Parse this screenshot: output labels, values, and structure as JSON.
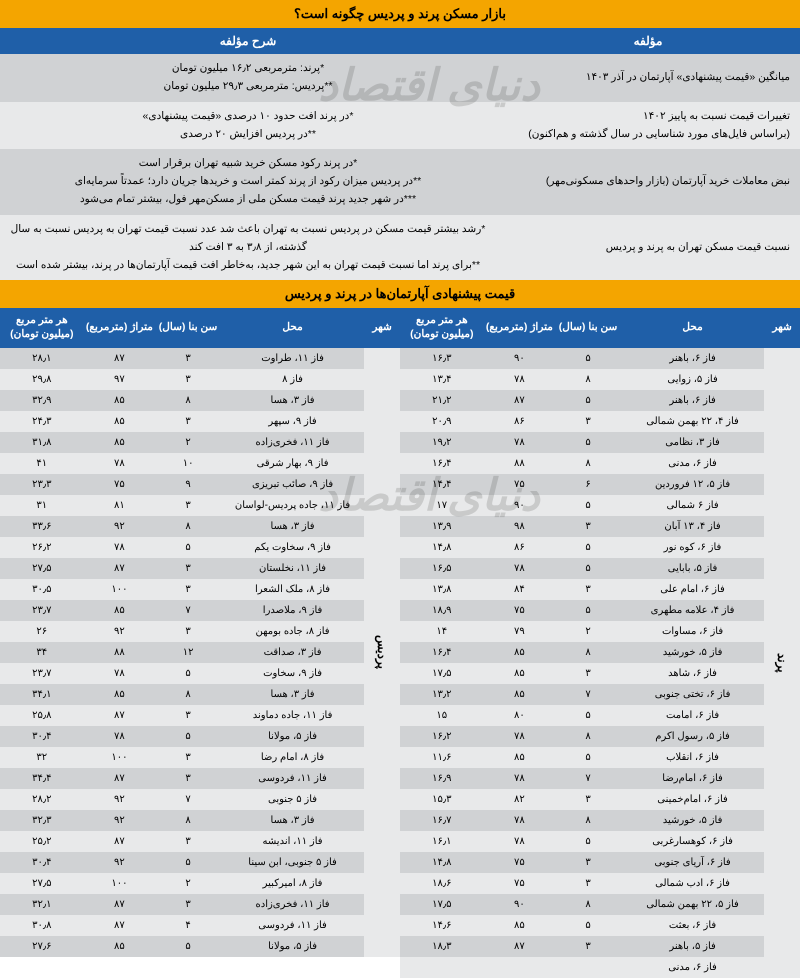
{
  "title": "بازار مسکن پرند و پردیس چگونه است؟",
  "subTitle": "قیمت پیشنهادی آپارتمان‌ها در پرند و پردیس",
  "watermark": "دنیای اقتصاد",
  "summaryHeaders": {
    "right": "مؤلفه",
    "left": "شرح مؤلفه"
  },
  "summaryRows": [
    {
      "r": "میانگین «قیمت پیشنهادی» آپارتمان در آذر ۱۴۰۳",
      "l": "*پرند: مترمربعی ۱۶٫۲ میلیون تومان<br>**پردیس: مترمربعی ۲۹٫۳ میلیون تومان"
    },
    {
      "r": "تغییرات قیمت نسبت به پاییز ۱۴۰۲<br>(براساس فایل‌های مورد شناسایی در سال گذشته و هم‌اکنون)",
      "l": "*در پرند افت حدود ۱۰ درصدی «قیمت پیشنهادی»<br>**در پردیس افزایش ۲۰ درصدی"
    },
    {
      "r": "نبض معاملات خرید آپارتمان (بازار واحدهای مسکونی‌مهر)",
      "l": "*در پرند رکود مسکن خرید شبیه تهران برقرار است<br>**در پردیس میزان رکود از پرند کمتر است و خریدها جریان دارد؛ عمدتاً سرمایه‌ای<br>***در شهر جدید پرند قیمت مسکن ملی از مسکن‌مهر فول، بیشتر تمام می‌شود"
    },
    {
      "r": "نسبت قیمت مسکن تهران به پرند و پردیس",
      "l": "*رشد بیشتر قیمت مسکن در پردیس نسبت به تهران باعث شد عدد نسبت قیمت تهران به پردیس نسبت به سال گذشته، از ۳٫۸ به ۳ افت کند<br>**برای پرند اما نسبت قیمت تهران به این شهر جدید، به‌خاطر افت قیمت آپارتمان‌ها در پرند، بیشتر شده است"
    }
  ],
  "priceHeaders": {
    "city": "شهر",
    "loc": "محل",
    "age": "سن بنا (سال)",
    "area": "متراژ (مترمربع)",
    "price": "هر متر مربع<br>(میلیون تومان)"
  },
  "cityRight": "پرند",
  "cityLeft": "پردیس",
  "rowsRight": [
    {
      "loc": "فاز ۶، باهنر",
      "age": "۵",
      "area": "۹۰",
      "price": "۱۶٫۳"
    },
    {
      "loc": "فاز ۵، زوایی",
      "age": "۸",
      "area": "۷۸",
      "price": "۱۳٫۴"
    },
    {
      "loc": "فاز ۶، باهنر",
      "age": "۵",
      "area": "۸۷",
      "price": "۲۱٫۲"
    },
    {
      "loc": "فاز ۴، ۲۲ بهمن شمالی",
      "age": "۳",
      "area": "۸۶",
      "price": "۲۰٫۹"
    },
    {
      "loc": "فاز ۳، نظامی",
      "age": "۵",
      "area": "۷۸",
      "price": "۱۹٫۲"
    },
    {
      "loc": "فاز ۶، مدنی",
      "age": "۸",
      "area": "۸۸",
      "price": "۱۶٫۴"
    },
    {
      "loc": "فاز ۵، ۱۲ فروردین",
      "age": "۶",
      "area": "۷۵",
      "price": "۱۴٫۴"
    },
    {
      "loc": "فاز ۶ شمالی",
      "age": "۵",
      "area": "۹۰",
      "price": "۱۷"
    },
    {
      "loc": "فاز ۴، ۱۳ آبان",
      "age": "۳",
      "area": "۹۸",
      "price": "۱۳٫۹"
    },
    {
      "loc": "فاز ۶، کوه نور",
      "age": "۵",
      "area": "۸۶",
      "price": "۱۴٫۸"
    },
    {
      "loc": "فاز ۵، بابایی",
      "age": "۵",
      "area": "۷۸",
      "price": "۱۶٫۵"
    },
    {
      "loc": "فاز ۶، امام علی",
      "age": "۳",
      "area": "۸۴",
      "price": "۱۳٫۸"
    },
    {
      "loc": "فاز ۴، علامه مطهری",
      "age": "۵",
      "area": "۷۵",
      "price": "۱۸٫۹"
    },
    {
      "loc": "فاز ۶، مساوات",
      "age": "۲",
      "area": "۷۹",
      "price": "۱۴"
    },
    {
      "loc": "فاز ۵، خورشید",
      "age": "۸",
      "area": "۸۵",
      "price": "۱۶٫۴"
    },
    {
      "loc": "فاز ۶، شاهد",
      "age": "۳",
      "area": "۸۵",
      "price": "۱۷٫۵"
    },
    {
      "loc": "فاز ۶، تختی جنوبی",
      "age": "۷",
      "area": "۸۵",
      "price": "۱۳٫۲"
    },
    {
      "loc": "فاز ۶، امامت",
      "age": "۵",
      "area": "۸۰",
      "price": "۱۵"
    },
    {
      "loc": "فاز ۵، رسول اکرم",
      "age": "۸",
      "area": "۷۸",
      "price": "۱۶٫۲"
    },
    {
      "loc": "فاز ۶، انقلاب",
      "age": "۵",
      "area": "۸۵",
      "price": "۱۱٫۶"
    },
    {
      "loc": "فاز ۶، امام‌رضا",
      "age": "۷",
      "area": "۷۸",
      "price": "۱۶٫۹"
    },
    {
      "loc": "فاز ۶، امام‌خمینی",
      "age": "۳",
      "area": "۸۲",
      "price": "۱۵٫۳"
    },
    {
      "loc": "فاز ۵، خورشید",
      "age": "۸",
      "area": "۷۸",
      "price": "۱۶٫۷"
    },
    {
      "loc": "فاز ۶، کوهسارغربی",
      "age": "۵",
      "area": "۷۸",
      "price": "۱۶٫۱"
    },
    {
      "loc": "فاز ۶، آریای جنوبی",
      "age": "۳",
      "area": "۷۵",
      "price": "۱۴٫۸"
    },
    {
      "loc": "فاز ۶، ادب شمالی",
      "age": "۳",
      "area": "۷۵",
      "price": "۱۸٫۶"
    },
    {
      "loc": "فاز ۵، ۲۲ بهمن شمالی",
      "age": "۸",
      "area": "۹۰",
      "price": "۱۷٫۵"
    },
    {
      "loc": "فاز ۶، بعثت",
      "age": "۵",
      "area": "۸۵",
      "price": "۱۴٫۶"
    },
    {
      "loc": "فاز ۵، باهنر",
      "age": "۳",
      "area": "۸۷",
      "price": "۱۸٫۳"
    },
    {
      "loc": "فاز ۶، مدنی",
      "age": "",
      "area": "",
      "price": ""
    }
  ],
  "rowsLeft": [
    {
      "loc": "فاز ۱۱، طراوت",
      "age": "۳",
      "area": "۸۷",
      "price": "۲۸٫۱"
    },
    {
      "loc": "فاز ۸",
      "age": "۳",
      "area": "۹۷",
      "price": "۲۹٫۸"
    },
    {
      "loc": "فاز ۳، هسا",
      "age": "۸",
      "area": "۸۵",
      "price": "۳۲٫۹"
    },
    {
      "loc": "فاز ۹، سپهر",
      "age": "۳",
      "area": "۸۵",
      "price": "۲۴٫۳"
    },
    {
      "loc": "فاز ۱۱، فخری‌زاده",
      "age": "۲",
      "area": "۸۵",
      "price": "۳۱٫۸"
    },
    {
      "loc": "فاز ۹، بهار شرقی",
      "age": "۱۰",
      "area": "۷۸",
      "price": "۴۱"
    },
    {
      "loc": "فاز ۹، صائب تبریزی",
      "age": "۹",
      "area": "۷۵",
      "price": "۲۳٫۳"
    },
    {
      "loc": "فاز ۱۱، جاده پردیس-لواسان",
      "age": "۳",
      "area": "۸۱",
      "price": "۳۱"
    },
    {
      "loc": "فاز ۳، هسا",
      "age": "۸",
      "area": "۹۲",
      "price": "۳۳٫۶"
    },
    {
      "loc": "فاز ۹، سخاوت یکم",
      "age": "۵",
      "area": "۷۸",
      "price": "۲۶٫۲"
    },
    {
      "loc": "فاز ۱۱، نخلستان",
      "age": "۳",
      "area": "۸۷",
      "price": "۲۷٫۵"
    },
    {
      "loc": "فاز ۸، ملک الشعرا",
      "age": "۳",
      "area": "۱۰۰",
      "price": "۳۰٫۵"
    },
    {
      "loc": "فاز ۹، ملاصدرا",
      "age": "۷",
      "area": "۸۵",
      "price": "۲۳٫۷"
    },
    {
      "loc": "فاز ۸، جاده بومهن",
      "age": "۳",
      "area": "۹۲",
      "price": "۲۶"
    },
    {
      "loc": "فاز ۳، صداقت",
      "age": "۱۲",
      "area": "۸۸",
      "price": "۳۴"
    },
    {
      "loc": "فاز ۹، سخاوت",
      "age": "۵",
      "area": "۷۸",
      "price": "۲۳٫۷"
    },
    {
      "loc": "فاز ۳، هسا",
      "age": "۸",
      "area": "۸۵",
      "price": "۳۴٫۱"
    },
    {
      "loc": "فاز ۱۱، جاده دماوند",
      "age": "۳",
      "area": "۸۷",
      "price": "۲۵٫۸"
    },
    {
      "loc": "فاز ۵، مولانا",
      "age": "۵",
      "area": "۷۸",
      "price": "۳۰٫۴"
    },
    {
      "loc": "فاز ۸، امام رضا",
      "age": "۳",
      "area": "۱۰۰",
      "price": "۳۲"
    },
    {
      "loc": "فاز ۱۱، فردوسی",
      "age": "۳",
      "area": "۸۷",
      "price": "۳۴٫۴"
    },
    {
      "loc": "فاز ۵ جنوبی",
      "age": "۷",
      "area": "۹۲",
      "price": "۲۸٫۲"
    },
    {
      "loc": "فاز ۳، هسا",
      "age": "۸",
      "area": "۹۲",
      "price": "۳۲٫۳"
    },
    {
      "loc": "فاز ۱۱، اندیشه",
      "age": "۳",
      "area": "۸۷",
      "price": "۲۵٫۲"
    },
    {
      "loc": "فاز ۵ جنوبی، ابن سینا",
      "age": "۵",
      "area": "۹۲",
      "price": "۳۰٫۴"
    },
    {
      "loc": "فاز ۸، امیرکبیر",
      "age": "۲",
      "area": "۱۰۰",
      "price": "۲۷٫۵"
    },
    {
      "loc": "فاز ۱۱، فخری‌زاده",
      "age": "۳",
      "area": "۸۷",
      "price": "۳۲٫۱"
    },
    {
      "loc": "فاز ۱۱، فردوسی",
      "age": "۴",
      "area": "۸۷",
      "price": "۳۰٫۸"
    },
    {
      "loc": "فاز ۵، مولانا",
      "age": "۵",
      "area": "۸۵",
      "price": "۲۷٫۶"
    }
  ]
}
